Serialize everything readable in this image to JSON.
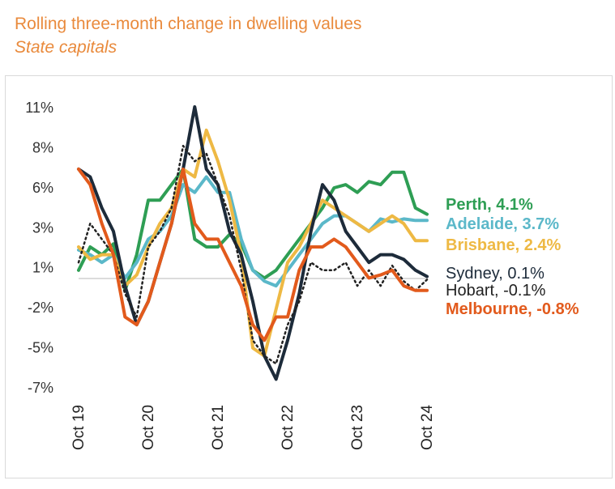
{
  "title": "Rolling three-month change in dwelling values",
  "subtitle": "State capitals",
  "chart_data": {
    "type": "line",
    "title": "Rolling three-month change in dwelling values",
    "subtitle": "State capitals",
    "xlabel": "",
    "ylabel": "",
    "y_unit": "%",
    "ylim": [
      -7,
      11
    ],
    "y_ticks": [
      "11%",
      "8%",
      "6%",
      "3%",
      "1%",
      "-2%",
      "-5%",
      "-7%"
    ],
    "x_ticks": [
      "Oct 19",
      "Oct 20",
      "Oct 21",
      "Oct 22",
      "Oct 23",
      "Oct 24"
    ],
    "x": [
      "Oct 19",
      "Dec 19",
      "Feb 20",
      "Apr 20",
      "Jun 20",
      "Aug 20",
      "Oct 20",
      "Dec 20",
      "Feb 21",
      "Apr 21",
      "Jun 21",
      "Aug 21",
      "Oct 21",
      "Dec 21",
      "Feb 22",
      "Apr 22",
      "Jun 22",
      "Aug 22",
      "Oct 22",
      "Dec 22",
      "Feb 23",
      "Apr 23",
      "Jun 23",
      "Aug 23",
      "Oct 23",
      "Dec 23",
      "Feb 24",
      "Apr 24",
      "Jun 24",
      "Aug 24",
      "Oct 24"
    ],
    "grid": false,
    "zero_line": true,
    "series": [
      {
        "name": "Perth",
        "end_label": "Perth, 4.1%",
        "color": "#2e9e54",
        "dashed": false,
        "values": [
          0.5,
          2.0,
          1.5,
          2.2,
          -0.8,
          1.5,
          5.0,
          5.0,
          6.0,
          7.0,
          2.5,
          2.0,
          2.0,
          2.8,
          2.2,
          0.5,
          0.0,
          0.5,
          1.5,
          2.5,
          3.5,
          4.5,
          5.8,
          6.0,
          5.5,
          6.2,
          6.0,
          6.8,
          6.8,
          4.5,
          4.1
        ]
      },
      {
        "name": "Adelaide",
        "end_label": "Adelaide, 3.7%",
        "color": "#5bb8c9",
        "dashed": false,
        "values": [
          1.8,
          1.5,
          1.0,
          1.5,
          0.0,
          1.0,
          2.5,
          3.0,
          4.0,
          6.0,
          5.5,
          6.5,
          5.5,
          5.5,
          2.5,
          0.5,
          -0.2,
          -0.5,
          0.5,
          1.5,
          2.5,
          3.5,
          4.0,
          4.0,
          3.5,
          3.0,
          3.8,
          3.6,
          3.8,
          3.7,
          3.7
        ]
      },
      {
        "name": "Brisbane",
        "end_label": "Brisbane, 2.4%",
        "color": "#eeb944",
        "dashed": false,
        "values": [
          2.0,
          1.2,
          1.5,
          1.5,
          -0.5,
          0.2,
          2.0,
          3.5,
          4.5,
          7.0,
          6.5,
          9.5,
          7.5,
          5.0,
          1.5,
          -4.5,
          -5.0,
          -2.0,
          1.0,
          2.0,
          3.5,
          5.0,
          4.5,
          4.0,
          3.5,
          3.0,
          3.5,
          4.0,
          3.5,
          2.4,
          2.4
        ]
      },
      {
        "name": "Sydney",
        "end_label": "Sydney, 0.1%",
        "color": "#1d2b3a",
        "dashed": false,
        "values": [
          7.0,
          6.5,
          4.5,
          3.0,
          -0.5,
          -3.0,
          -1.5,
          1.0,
          3.5,
          7.0,
          11.0,
          7.0,
          6.0,
          3.0,
          1.5,
          -1.5,
          -5.0,
          -6.5,
          -4.0,
          -1.0,
          3.0,
          6.0,
          5.0,
          3.0,
          2.0,
          1.0,
          1.5,
          1.5,
          1.2,
          0.5,
          0.1
        ]
      },
      {
        "name": "Hobart",
        "end_label": "Hobart, -0.1%",
        "color": "#222222",
        "dashed": true,
        "values": [
          1.0,
          3.5,
          2.5,
          1.5,
          -1.0,
          -2.5,
          2.0,
          3.0,
          4.5,
          8.5,
          7.5,
          8.0,
          6.0,
          4.0,
          0.5,
          -4.0,
          -5.0,
          -5.5,
          -3.0,
          -1.5,
          1.0,
          0.5,
          0.5,
          1.0,
          -0.5,
          0.5,
          -0.5,
          0.8,
          -0.2,
          -0.8,
          -0.1
        ]
      },
      {
        "name": "Melbourne",
        "end_label": "Melbourne, -0.8%",
        "color": "#e25a1c",
        "dashed": false,
        "values": [
          7.0,
          6.0,
          3.5,
          1.5,
          -2.5,
          -3.0,
          -1.5,
          1.0,
          3.5,
          7.0,
          3.5,
          2.5,
          2.5,
          1.0,
          -0.5,
          -3.0,
          -4.0,
          -2.5,
          -2.5,
          0.5,
          2.0,
          2.0,
          2.5,
          2.0,
          1.0,
          0.0,
          0.2,
          0.5,
          -0.5,
          -0.8,
          -0.8
        ]
      }
    ]
  }
}
